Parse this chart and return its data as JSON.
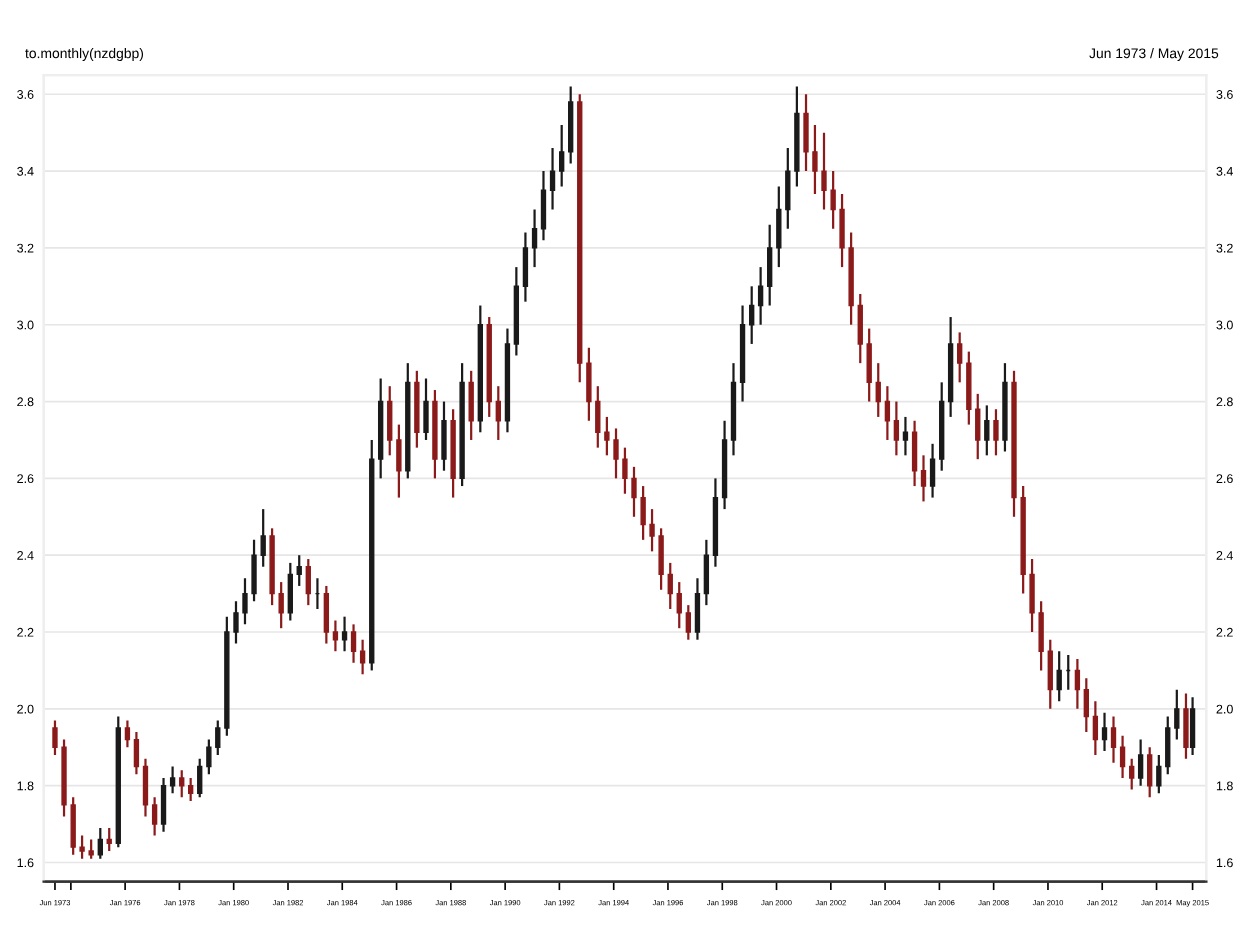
{
  "chart_data": {
    "type": "candlestick",
    "title": "to.monthly(nzdgbp)",
    "subtitle": "Jun 1973 / May 2015",
    "x": [
      "1973-06",
      "1973-10",
      "1974-02",
      "1974-06",
      "1974-10",
      "1975-02",
      "1975-06",
      "1975-10",
      "1976-02",
      "1976-06",
      "1976-10",
      "1977-02",
      "1977-06",
      "1977-10",
      "1978-02",
      "1978-06",
      "1978-10",
      "1979-02",
      "1979-06",
      "1979-10",
      "1980-02",
      "1980-06",
      "1980-10",
      "1981-02",
      "1981-06",
      "1981-10",
      "1982-02",
      "1982-06",
      "1982-10",
      "1983-02",
      "1983-06",
      "1983-10",
      "1984-02",
      "1984-06",
      "1984-10",
      "1985-02",
      "1985-06",
      "1985-10",
      "1986-02",
      "1986-06",
      "1986-10",
      "1987-02",
      "1987-06",
      "1987-10",
      "1988-02",
      "1988-06",
      "1988-10",
      "1989-02",
      "1989-06",
      "1989-10",
      "1990-02",
      "1990-06",
      "1990-10",
      "1991-02",
      "1991-06",
      "1991-10",
      "1992-02",
      "1992-06",
      "1992-10",
      "1993-02",
      "1993-06",
      "1993-10",
      "1994-02",
      "1994-06",
      "1994-10",
      "1995-02",
      "1995-06",
      "1995-10",
      "1996-02",
      "1996-06",
      "1996-10",
      "1997-02",
      "1997-06",
      "1997-10",
      "1998-02",
      "1998-06",
      "1998-10",
      "1999-02",
      "1999-06",
      "1999-10",
      "2000-02",
      "2000-06",
      "2000-10",
      "2001-02",
      "2001-06",
      "2001-10",
      "2002-02",
      "2002-06",
      "2002-10",
      "2003-02",
      "2003-06",
      "2003-10",
      "2004-02",
      "2004-06",
      "2004-10",
      "2005-02",
      "2005-06",
      "2005-10",
      "2006-02",
      "2006-06",
      "2006-10",
      "2007-02",
      "2007-06",
      "2007-10",
      "2008-02",
      "2008-06",
      "2008-10",
      "2009-02",
      "2009-06",
      "2009-10",
      "2010-02",
      "2010-06",
      "2010-10",
      "2011-02",
      "2011-06",
      "2011-10",
      "2012-02",
      "2012-06",
      "2012-10",
      "2013-02",
      "2013-06",
      "2013-10",
      "2014-02",
      "2014-06",
      "2014-10",
      "2015-02",
      "2015-05"
    ],
    "ohlc": [
      [
        1.95,
        1.97,
        1.88,
        1.9
      ],
      [
        1.9,
        1.92,
        1.72,
        1.75
      ],
      [
        1.75,
        1.77,
        1.62,
        1.64
      ],
      [
        1.64,
        1.67,
        1.61,
        1.63
      ],
      [
        1.63,
        1.66,
        1.61,
        1.62
      ],
      [
        1.62,
        1.69,
        1.61,
        1.66
      ],
      [
        1.66,
        1.69,
        1.63,
        1.65
      ],
      [
        1.65,
        1.98,
        1.64,
        1.95
      ],
      [
        1.95,
        1.97,
        1.9,
        1.92
      ],
      [
        1.92,
        1.94,
        1.83,
        1.85
      ],
      [
        1.85,
        1.87,
        1.72,
        1.75
      ],
      [
        1.75,
        1.77,
        1.67,
        1.7
      ],
      [
        1.7,
        1.82,
        1.68,
        1.8
      ],
      [
        1.8,
        1.85,
        1.78,
        1.82
      ],
      [
        1.82,
        1.84,
        1.77,
        1.8
      ],
      [
        1.8,
        1.82,
        1.76,
        1.78
      ],
      [
        1.78,
        1.87,
        1.77,
        1.85
      ],
      [
        1.85,
        1.92,
        1.83,
        1.9
      ],
      [
        1.9,
        1.97,
        1.88,
        1.95
      ],
      [
        1.95,
        2.24,
        1.93,
        2.2
      ],
      [
        2.2,
        2.28,
        2.17,
        2.25
      ],
      [
        2.25,
        2.34,
        2.22,
        2.3
      ],
      [
        2.3,
        2.44,
        2.28,
        2.4
      ],
      [
        2.4,
        2.52,
        2.37,
        2.45
      ],
      [
        2.45,
        2.47,
        2.27,
        2.3
      ],
      [
        2.3,
        2.33,
        2.21,
        2.25
      ],
      [
        2.25,
        2.38,
        2.23,
        2.35
      ],
      [
        2.35,
        2.4,
        2.32,
        2.37
      ],
      [
        2.37,
        2.39,
        2.27,
        2.3
      ],
      [
        2.3,
        2.34,
        2.26,
        2.3
      ],
      [
        2.3,
        2.32,
        2.17,
        2.2
      ],
      [
        2.2,
        2.23,
        2.15,
        2.18
      ],
      [
        2.18,
        2.24,
        2.15,
        2.2
      ],
      [
        2.2,
        2.22,
        2.12,
        2.15
      ],
      [
        2.15,
        2.18,
        2.09,
        2.12
      ],
      [
        2.12,
        2.7,
        2.1,
        2.65
      ],
      [
        2.65,
        2.86,
        2.6,
        2.8
      ],
      [
        2.8,
        2.84,
        2.66,
        2.7
      ],
      [
        2.7,
        2.74,
        2.55,
        2.62
      ],
      [
        2.62,
        2.9,
        2.6,
        2.85
      ],
      [
        2.85,
        2.88,
        2.68,
        2.72
      ],
      [
        2.72,
        2.86,
        2.7,
        2.8
      ],
      [
        2.8,
        2.83,
        2.6,
        2.65
      ],
      [
        2.65,
        2.8,
        2.62,
        2.75
      ],
      [
        2.75,
        2.78,
        2.55,
        2.6
      ],
      [
        2.6,
        2.9,
        2.58,
        2.85
      ],
      [
        2.85,
        2.88,
        2.7,
        2.75
      ],
      [
        2.75,
        3.05,
        2.72,
        3.0
      ],
      [
        3.0,
        3.02,
        2.76,
        2.8
      ],
      [
        2.8,
        2.84,
        2.7,
        2.75
      ],
      [
        2.75,
        2.99,
        2.72,
        2.95
      ],
      [
        2.95,
        3.15,
        2.92,
        3.1
      ],
      [
        3.1,
        3.24,
        3.06,
        3.2
      ],
      [
        3.2,
        3.3,
        3.15,
        3.25
      ],
      [
        3.25,
        3.4,
        3.22,
        3.35
      ],
      [
        3.35,
        3.46,
        3.3,
        3.4
      ],
      [
        3.4,
        3.52,
        3.36,
        3.45
      ],
      [
        3.45,
        3.62,
        3.42,
        3.58
      ],
      [
        3.58,
        3.6,
        2.85,
        2.9
      ],
      [
        2.9,
        2.94,
        2.75,
        2.8
      ],
      [
        2.8,
        2.84,
        2.68,
        2.72
      ],
      [
        2.72,
        2.76,
        2.66,
        2.7
      ],
      [
        2.7,
        2.73,
        2.6,
        2.65
      ],
      [
        2.65,
        2.68,
        2.56,
        2.6
      ],
      [
        2.6,
        2.63,
        2.5,
        2.55
      ],
      [
        2.55,
        2.58,
        2.44,
        2.48
      ],
      [
        2.48,
        2.52,
        2.41,
        2.45
      ],
      [
        2.45,
        2.47,
        2.31,
        2.35
      ],
      [
        2.35,
        2.38,
        2.26,
        2.3
      ],
      [
        2.3,
        2.33,
        2.21,
        2.25
      ],
      [
        2.25,
        2.27,
        2.18,
        2.2
      ],
      [
        2.2,
        2.34,
        2.18,
        2.3
      ],
      [
        2.3,
        2.44,
        2.27,
        2.4
      ],
      [
        2.4,
        2.6,
        2.37,
        2.55
      ],
      [
        2.55,
        2.75,
        2.52,
        2.7
      ],
      [
        2.7,
        2.9,
        2.66,
        2.85
      ],
      [
        2.85,
        3.05,
        2.8,
        3.0
      ],
      [
        3.0,
        3.1,
        2.95,
        3.05
      ],
      [
        3.05,
        3.15,
        3.0,
        3.1
      ],
      [
        3.1,
        3.26,
        3.05,
        3.2
      ],
      [
        3.2,
        3.36,
        3.15,
        3.3
      ],
      [
        3.3,
        3.46,
        3.25,
        3.4
      ],
      [
        3.4,
        3.62,
        3.36,
        3.55
      ],
      [
        3.55,
        3.6,
        3.4,
        3.45
      ],
      [
        3.45,
        3.52,
        3.34,
        3.4
      ],
      [
        3.4,
        3.5,
        3.3,
        3.35
      ],
      [
        3.35,
        3.4,
        3.25,
        3.3
      ],
      [
        3.3,
        3.34,
        3.15,
        3.2
      ],
      [
        3.2,
        3.24,
        3.0,
        3.05
      ],
      [
        3.05,
        3.08,
        2.9,
        2.95
      ],
      [
        2.95,
        2.99,
        2.8,
        2.85
      ],
      [
        2.85,
        2.9,
        2.76,
        2.8
      ],
      [
        2.8,
        2.84,
        2.7,
        2.75
      ],
      [
        2.75,
        2.8,
        2.66,
        2.7
      ],
      [
        2.7,
        2.76,
        2.66,
        2.72
      ],
      [
        2.72,
        2.75,
        2.58,
        2.62
      ],
      [
        2.62,
        2.66,
        2.54,
        2.58
      ],
      [
        2.58,
        2.69,
        2.55,
        2.65
      ],
      [
        2.65,
        2.85,
        2.62,
        2.8
      ],
      [
        2.8,
        3.02,
        2.76,
        2.95
      ],
      [
        2.95,
        2.98,
        2.85,
        2.9
      ],
      [
        2.9,
        2.93,
        2.74,
        2.78
      ],
      [
        2.78,
        2.82,
        2.65,
        2.7
      ],
      [
        2.7,
        2.79,
        2.66,
        2.75
      ],
      [
        2.75,
        2.78,
        2.66,
        2.7
      ],
      [
        2.7,
        2.9,
        2.67,
        2.85
      ],
      [
        2.85,
        2.88,
        2.5,
        2.55
      ],
      [
        2.55,
        2.58,
        2.3,
        2.35
      ],
      [
        2.35,
        2.39,
        2.2,
        2.25
      ],
      [
        2.25,
        2.28,
        2.1,
        2.15
      ],
      [
        2.15,
        2.18,
        2.0,
        2.05
      ],
      [
        2.05,
        2.15,
        2.02,
        2.1
      ],
      [
        2.1,
        2.14,
        2.05,
        2.1
      ],
      [
        2.1,
        2.13,
        2.0,
        2.05
      ],
      [
        2.05,
        2.08,
        1.94,
        1.98
      ],
      [
        1.98,
        2.02,
        1.88,
        1.92
      ],
      [
        1.92,
        1.99,
        1.89,
        1.95
      ],
      [
        1.95,
        1.98,
        1.86,
        1.9
      ],
      [
        1.9,
        1.93,
        1.82,
        1.85
      ],
      [
        1.85,
        1.87,
        1.79,
        1.82
      ],
      [
        1.82,
        1.92,
        1.8,
        1.88
      ],
      [
        1.88,
        1.9,
        1.77,
        1.8
      ],
      [
        1.8,
        1.88,
        1.78,
        1.85
      ],
      [
        1.85,
        1.98,
        1.83,
        1.95
      ],
      [
        1.95,
        2.05,
        1.92,
        2.0
      ],
      [
        2.0,
        2.04,
        1.87,
        1.9
      ],
      [
        1.9,
        2.03,
        1.88,
        2.0
      ]
    ],
    "xlim": [
      "1973-01",
      "2015-11"
    ],
    "xticks": [
      {
        "value": "1973-06",
        "label": "Jun 1973"
      },
      {
        "value": "1974-01",
        "label": null
      },
      {
        "value": "1976-01",
        "label": "Jan 1976"
      },
      {
        "value": "1978-01",
        "label": "Jan 1978"
      },
      {
        "value": "1980-01",
        "label": "Jan 1980"
      },
      {
        "value": "1982-01",
        "label": "Jan 1982"
      },
      {
        "value": "1984-01",
        "label": "Jan 1984"
      },
      {
        "value": "1986-01",
        "label": "Jan 1986"
      },
      {
        "value": "1988-01",
        "label": "Jan 1988"
      },
      {
        "value": "1990-01",
        "label": "Jan 1990"
      },
      {
        "value": "1992-01",
        "label": "Jan 1992"
      },
      {
        "value": "1994-01",
        "label": "Jan 1994"
      },
      {
        "value": "1996-01",
        "label": "Jan 1996"
      },
      {
        "value": "1998-01",
        "label": "Jan 1998"
      },
      {
        "value": "2000-01",
        "label": "Jan 2000"
      },
      {
        "value": "2002-01",
        "label": "Jan 2002"
      },
      {
        "value": "2004-01",
        "label": "Jan 2004"
      },
      {
        "value": "2006-01",
        "label": "Jan 2006"
      },
      {
        "value": "2008-01",
        "label": "Jan 2008"
      },
      {
        "value": "2010-01",
        "label": "Jan 2010"
      },
      {
        "value": "2012-01",
        "label": "Jan 2012"
      },
      {
        "value": "2014-01",
        "label": "Jan 2014"
      },
      {
        "value": "2015-05",
        "label": "May 2015"
      }
    ],
    "ylim": [
      1.55,
      3.65
    ],
    "yticks": [
      {
        "value": 1.6,
        "label": "1.6"
      },
      {
        "value": 1.8,
        "label": "1.8"
      },
      {
        "value": 2.0,
        "label": "2.0"
      },
      {
        "value": 2.2,
        "label": "2.2"
      },
      {
        "value": 2.4,
        "label": "2.4"
      },
      {
        "value": 2.6,
        "label": "2.6"
      },
      {
        "value": 2.8,
        "label": "2.8"
      },
      {
        "value": 3.0,
        "label": "3.0"
      },
      {
        "value": 3.2,
        "label": "3.2"
      },
      {
        "value": 3.4,
        "label": "3.4"
      },
      {
        "value": 3.6,
        "label": "3.6"
      }
    ],
    "y2lim": [
      1.55,
      3.65
    ],
    "y2ticks": [
      {
        "value": 1.6,
        "label": "1.6"
      },
      {
        "value": 1.8,
        "label": "1.8"
      },
      {
        "value": 2.0,
        "label": "2.0"
      },
      {
        "value": 2.2,
        "label": "2.2"
      },
      {
        "value": 2.4,
        "label": "2.4"
      },
      {
        "value": 2.6,
        "label": "2.6"
      },
      {
        "value": 2.8,
        "label": "2.8"
      },
      {
        "value": 3.0,
        "label": "3.0"
      },
      {
        "value": 3.2,
        "label": "3.2"
      },
      {
        "value": 3.4,
        "label": "3.4"
      },
      {
        "value": 3.6,
        "label": "3.6"
      }
    ],
    "grid": "y"
  }
}
